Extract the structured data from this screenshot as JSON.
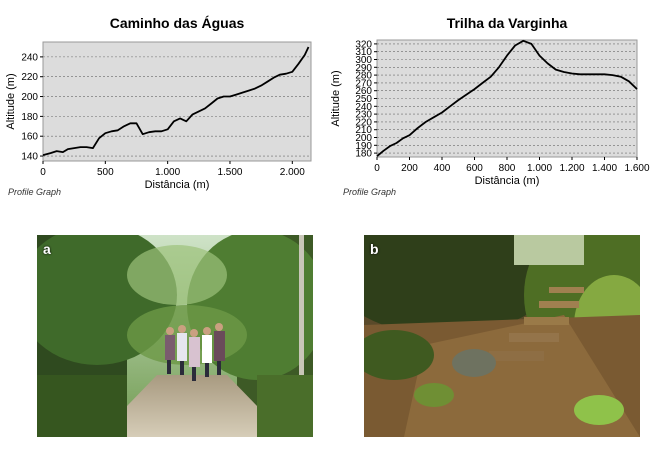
{
  "chart_data": [
    {
      "type": "line",
      "title": "Caminho das Águas",
      "xlabel": "Distância (m)",
      "ylabel": "Altitude (m)",
      "xlim": [
        0,
        2150
      ],
      "ylim": [
        135,
        255
      ],
      "xticks": [
        0,
        500,
        1000,
        1500,
        2000
      ],
      "xtick_labels": [
        "0",
        "500",
        "1.000",
        "1.500",
        "2.000"
      ],
      "yticks": [
        140,
        160,
        180,
        200,
        220,
        240
      ],
      "grid": true,
      "footer": "Profile Graph",
      "x": [
        0,
        60,
        110,
        160,
        200,
        250,
        300,
        350,
        400,
        450,
        500,
        550,
        600,
        650,
        700,
        750,
        800,
        850,
        900,
        950,
        1000,
        1050,
        1100,
        1150,
        1200,
        1250,
        1300,
        1350,
        1400,
        1450,
        1500,
        1550,
        1600,
        1650,
        1700,
        1750,
        1800,
        1850,
        1900,
        1950,
        2000,
        2050,
        2100,
        2130
      ],
      "y": [
        141,
        143,
        145,
        144,
        147,
        148,
        149,
        149,
        148,
        158,
        163,
        165,
        166,
        170,
        173,
        173,
        162,
        164,
        165,
        165,
        167,
        175,
        178,
        175,
        182,
        185,
        188,
        193,
        198,
        200,
        200,
        202,
        204,
        206,
        208,
        211,
        215,
        219,
        222,
        223,
        225,
        233,
        242,
        250
      ]
    },
    {
      "type": "line",
      "title": "Trilha da Varginha",
      "xlabel": "Distância (m)",
      "ylabel": "Altitude (m)",
      "xlim": [
        0,
        1600
      ],
      "ylim": [
        175,
        325
      ],
      "xticks": [
        0,
        200,
        400,
        600,
        800,
        1000,
        1200,
        1400,
        1600
      ],
      "xtick_labels": [
        "0",
        "200",
        "400",
        "600",
        "800",
        "1.000",
        "1.200",
        "1.400",
        "1.600"
      ],
      "yticks": [
        180,
        190,
        200,
        210,
        220,
        230,
        240,
        250,
        260,
        270,
        280,
        290,
        300,
        310,
        320
      ],
      "grid": true,
      "footer": "Profile Graph",
      "x": [
        0,
        40,
        80,
        120,
        160,
        200,
        250,
        300,
        350,
        400,
        450,
        500,
        550,
        600,
        650,
        700,
        750,
        800,
        850,
        900,
        950,
        1000,
        1050,
        1100,
        1150,
        1200,
        1250,
        1300,
        1350,
        1400,
        1450,
        1500,
        1550,
        1600
      ],
      "y": [
        176,
        183,
        189,
        193,
        199,
        203,
        212,
        220,
        226,
        232,
        240,
        248,
        255,
        262,
        270,
        278,
        290,
        305,
        318,
        324,
        320,
        305,
        295,
        287,
        284,
        282,
        281,
        281,
        281,
        281,
        280,
        278,
        272,
        262
      ]
    }
  ],
  "photos": {
    "a": {
      "label": "a"
    },
    "b": {
      "label": "b"
    }
  }
}
